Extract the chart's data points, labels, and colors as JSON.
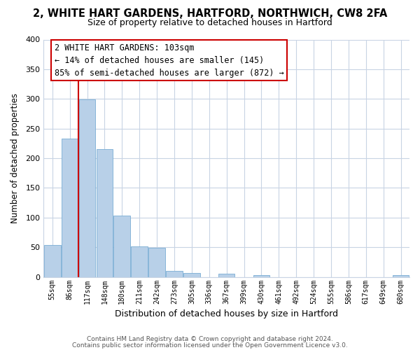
{
  "title": "2, WHITE HART GARDENS, HARTFORD, NORTHWICH, CW8 2FA",
  "subtitle": "Size of property relative to detached houses in Hartford",
  "xlabel": "Distribution of detached houses by size in Hartford",
  "ylabel": "Number of detached properties",
  "bar_color": "#b8d0e8",
  "bar_edge_color": "#7aadd4",
  "vline_color": "#cc0000",
  "categories": [
    "55sqm",
    "86sqm",
    "117sqm",
    "148sqm",
    "180sqm",
    "211sqm",
    "242sqm",
    "273sqm",
    "305sqm",
    "336sqm",
    "367sqm",
    "399sqm",
    "430sqm",
    "461sqm",
    "492sqm",
    "524sqm",
    "555sqm",
    "586sqm",
    "617sqm",
    "649sqm",
    "680sqm"
  ],
  "values": [
    54,
    233,
    299,
    215,
    103,
    52,
    49,
    10,
    7,
    0,
    6,
    0,
    3,
    0,
    0,
    0,
    0,
    0,
    0,
    0,
    3
  ],
  "ylim": [
    0,
    400
  ],
  "yticks": [
    0,
    50,
    100,
    150,
    200,
    250,
    300,
    350,
    400
  ],
  "annotation_text": "2 WHITE HART GARDENS: 103sqm\n← 14% of detached houses are smaller (145)\n85% of semi-detached houses are larger (872) →",
  "footer_line1": "Contains HM Land Registry data © Crown copyright and database right 2024.",
  "footer_line2": "Contains public sector information licensed under the Open Government Licence v3.0.",
  "background_color": "#ffffff",
  "grid_color": "#c8d4e4"
}
